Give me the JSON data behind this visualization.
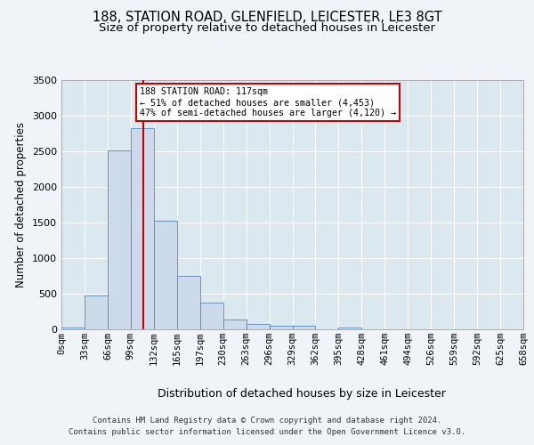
{
  "title_line1": "188, STATION ROAD, GLENFIELD, LEICESTER, LE3 8GT",
  "title_line2": "Size of property relative to detached houses in Leicester",
  "xlabel": "Distribution of detached houses by size in Leicester",
  "ylabel": "Number of detached properties",
  "bin_labels": [
    "0sqm",
    "33sqm",
    "66sqm",
    "99sqm",
    "132sqm",
    "165sqm",
    "197sqm",
    "230sqm",
    "263sqm",
    "296sqm",
    "329sqm",
    "362sqm",
    "395sqm",
    "428sqm",
    "461sqm",
    "494sqm",
    "526sqm",
    "559sqm",
    "592sqm",
    "625sqm",
    "658sqm"
  ],
  "bar_values": [
    25,
    480,
    2510,
    2820,
    1520,
    750,
    380,
    140,
    70,
    55,
    55,
    0,
    30,
    0,
    0,
    0,
    0,
    0,
    0,
    0
  ],
  "bar_color": "#ccdaeb",
  "bar_edge_color": "#5588bb",
  "vline_x": 117,
  "vline_color": "#cc0000",
  "annotation_text": "188 STATION ROAD: 117sqm\n← 51% of detached houses are smaller (4,453)\n47% of semi-detached houses are larger (4,120) →",
  "annotation_box_color": "#ffffff",
  "annotation_box_edge": "#cc0000",
  "footnote_line1": "Contains HM Land Registry data © Crown copyright and database right 2024.",
  "footnote_line2": "Contains public sector information licensed under the Open Government Licence v3.0.",
  "ylim": [
    0,
    3500
  ],
  "yticks": [
    0,
    500,
    1000,
    1500,
    2000,
    2500,
    3000,
    3500
  ],
  "bg_color": "#dce8f0",
  "grid_color": "#ffffff",
  "fig_bg_color": "#f0f4f8"
}
